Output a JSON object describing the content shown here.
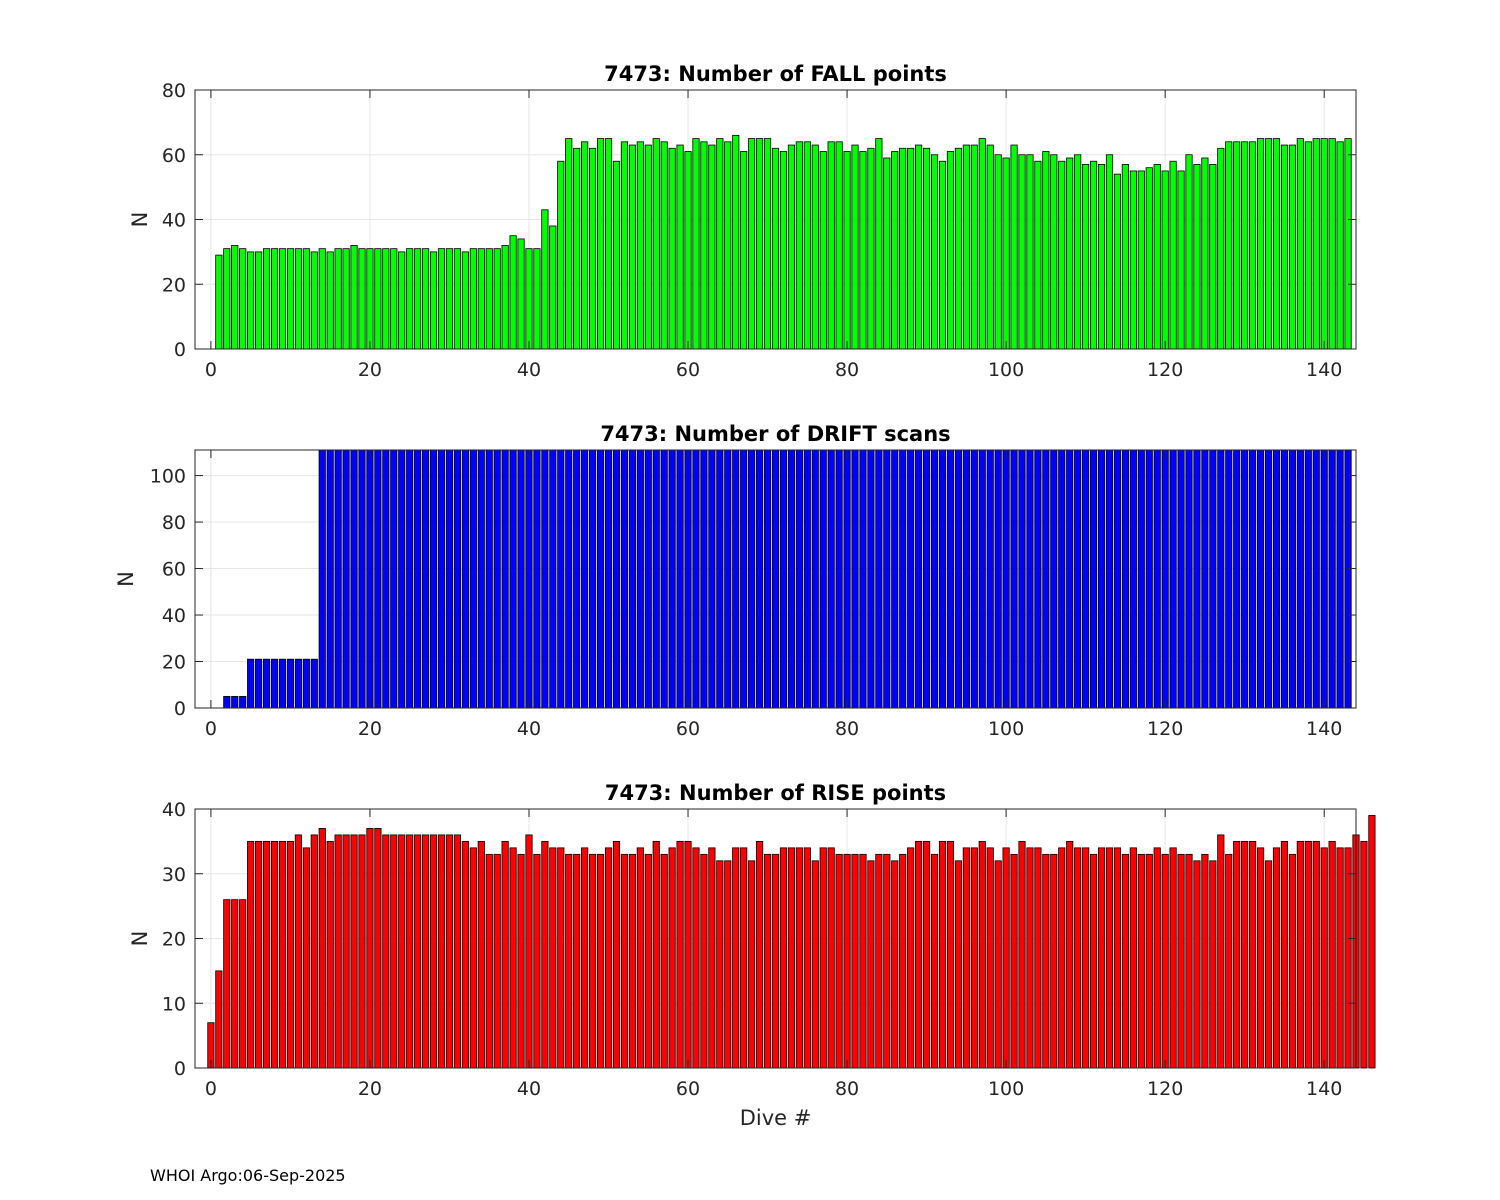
{
  "footer": "WHOI Argo:06-Sep-2025",
  "xlabel": "Dive #",
  "chart_data": [
    {
      "type": "bar",
      "title": "7473: Number of FALL points",
      "ylabel": "N",
      "xlabel": "",
      "xlim": [
        -2,
        144
      ],
      "ylim": [
        0,
        80
      ],
      "yticks": [
        0,
        20,
        40,
        60,
        80
      ],
      "xticks": [
        0,
        20,
        40,
        60,
        80,
        100,
        120,
        140
      ],
      "grid": true,
      "color": "#00ff00",
      "x_start": 1,
      "values": [
        29,
        31,
        32,
        31,
        30,
        30,
        31,
        31,
        31,
        31,
        31,
        31,
        30,
        31,
        30,
        31,
        31,
        32,
        31,
        31,
        31,
        31,
        31,
        30,
        31,
        31,
        31,
        30,
        31,
        31,
        31,
        30,
        31,
        31,
        31,
        31,
        32,
        35,
        34,
        31,
        31,
        43,
        38,
        58,
        65,
        62,
        64,
        62,
        65,
        65,
        58,
        64,
        63,
        64,
        63,
        65,
        64,
        62,
        63,
        61,
        65,
        64,
        63,
        65,
        64,
        66,
        61,
        65,
        65,
        65,
        62,
        61,
        63,
        64,
        64,
        63,
        61,
        64,
        64,
        61,
        63,
        61,
        62,
        65,
        59,
        61,
        62,
        62,
        63,
        62,
        60,
        58,
        61,
        62,
        63,
        63,
        65,
        63,
        60,
        59,
        63,
        60,
        60,
        58,
        61,
        60,
        58,
        59,
        60,
        57,
        58,
        57,
        60,
        54,
        57,
        55,
        55,
        56,
        57,
        55,
        58,
        55,
        60,
        57,
        59,
        57,
        62,
        64,
        64,
        64,
        64,
        65,
        65,
        65,
        63,
        63,
        65,
        64,
        65,
        65,
        65,
        64,
        65
      ]
    },
    {
      "type": "bar",
      "title": "7473: Number of DRIFT scans",
      "ylabel": "N",
      "xlabel": "",
      "xlim": [
        -2,
        144
      ],
      "ylim": [
        0,
        111
      ],
      "yticks": [
        0,
        20,
        40,
        60,
        80,
        100
      ],
      "xticks": [
        0,
        20,
        40,
        60,
        80,
        100,
        120,
        140
      ],
      "grid": true,
      "color": "#0000ff",
      "x_start": 0,
      "values": [
        0,
        0,
        5,
        5,
        5,
        21,
        21,
        21,
        21,
        21,
        21,
        21,
        21,
        21,
        111,
        111,
        111,
        111,
        111,
        111,
        111,
        111,
        111,
        111,
        111,
        111,
        111,
        111,
        111,
        111,
        111,
        111,
        111,
        111,
        111,
        111,
        111,
        111,
        111,
        111,
        111,
        111,
        111,
        111,
        111,
        111,
        111,
        111,
        111,
        111,
        111,
        111,
        111,
        111,
        111,
        111,
        111,
        111,
        111,
        111,
        111,
        111,
        111,
        111,
        111,
        111,
        111,
        111,
        111,
        111,
        111,
        111,
        111,
        111,
        111,
        111,
        111,
        111,
        111,
        111,
        111,
        111,
        111,
        111,
        111,
        111,
        111,
        111,
        111,
        111,
        111,
        111,
        111,
        111,
        111,
        111,
        111,
        111,
        111,
        111,
        111,
        111,
        111,
        111,
        111,
        111,
        111,
        111,
        111,
        111,
        111,
        111,
        111,
        111,
        111,
        111,
        111,
        111,
        111,
        111,
        111,
        111,
        111,
        111,
        111,
        111,
        111,
        111,
        111,
        111,
        111,
        111,
        111,
        111,
        111,
        111,
        111,
        111,
        111,
        111,
        111,
        111,
        111,
        111
      ]
    },
    {
      "type": "bar",
      "title": "7473: Number of RISE points",
      "ylabel": "N",
      "xlabel": "Dive #",
      "xlim": [
        -2,
        144
      ],
      "ylim": [
        0,
        40
      ],
      "yticks": [
        0,
        10,
        20,
        30,
        40
      ],
      "xticks": [
        0,
        20,
        40,
        60,
        80,
        100,
        120,
        140
      ],
      "grid": true,
      "color": "#ff0000",
      "x_start": 0,
      "values": [
        7,
        15,
        26,
        26,
        26,
        35,
        35,
        35,
        35,
        35,
        35,
        36,
        34,
        36,
        37,
        35,
        36,
        36,
        36,
        36,
        37,
        37,
        36,
        36,
        36,
        36,
        36,
        36,
        36,
        36,
        36,
        36,
        35,
        34,
        35,
        33,
        33,
        35,
        34,
        33,
        36,
        33,
        35,
        34,
        34,
        33,
        33,
        34,
        33,
        33,
        34,
        35,
        33,
        33,
        34,
        33,
        35,
        33,
        34,
        35,
        35,
        34,
        33,
        34,
        32,
        32,
        34,
        34,
        32,
        35,
        33,
        33,
        34,
        34,
        34,
        34,
        32,
        34,
        34,
        33,
        33,
        33,
        33,
        32,
        33,
        33,
        32,
        33,
        34,
        35,
        35,
        33,
        35,
        35,
        32,
        34,
        34,
        35,
        34,
        32,
        34,
        33,
        35,
        34,
        34,
        33,
        33,
        34,
        35,
        34,
        34,
        33,
        34,
        34,
        34,
        33,
        34,
        33,
        33,
        34,
        33,
        34,
        33,
        33,
        32,
        33,
        32,
        36,
        33,
        35,
        35,
        35,
        34,
        32,
        34,
        35,
        33,
        35,
        35,
        35,
        34,
        35,
        34,
        34,
        36,
        35,
        39
      ]
    }
  ]
}
